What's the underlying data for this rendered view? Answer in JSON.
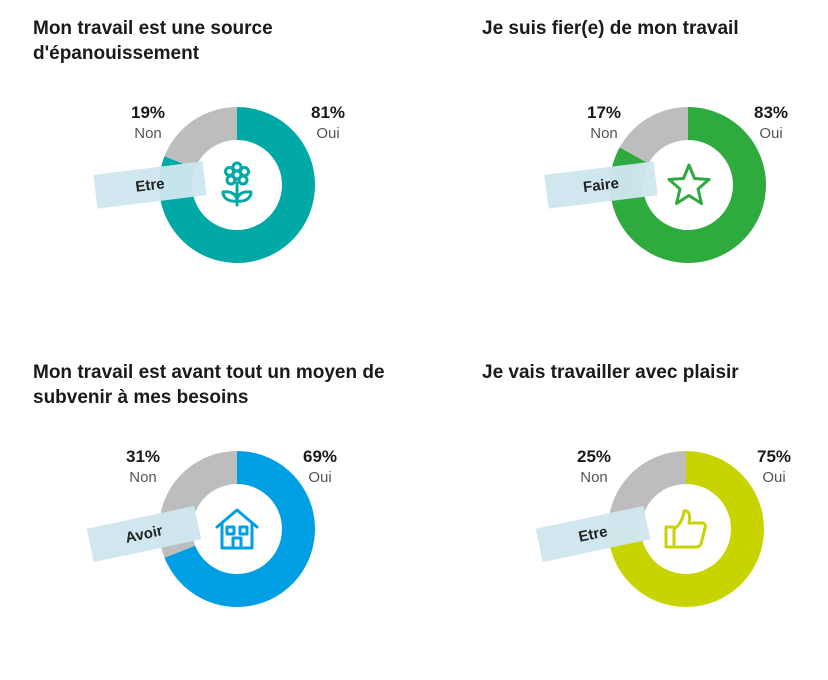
{
  "chart_data": [
    {
      "type": "pie",
      "title": "Mon travail est une source d'épanouissement",
      "categories": [
        "Non",
        "Oui"
      ],
      "values": [
        19,
        81
      ],
      "labels": [
        "19%",
        "81%"
      ],
      "colors": [
        "#bdbdbd",
        "#00a9a5"
      ],
      "tag": "Etre",
      "icon": "flower-icon"
    },
    {
      "type": "pie",
      "title": "Je suis fier(e) de mon travail",
      "categories": [
        "Non",
        "Oui"
      ],
      "values": [
        17,
        83
      ],
      "labels": [
        "17%",
        "83%"
      ],
      "colors": [
        "#bdbdbd",
        "#2eaa3f"
      ],
      "tag": "Faire",
      "icon": "star-icon"
    },
    {
      "type": "pie",
      "title": "Mon travail est avant tout un moyen de subvenir à mes besoins",
      "categories": [
        "Non",
        "Oui"
      ],
      "values": [
        31,
        69
      ],
      "labels": [
        "31%",
        "69%"
      ],
      "colors": [
        "#bdbdbd",
        "#009fe3"
      ],
      "tag": "Avoir",
      "icon": "house-icon"
    },
    {
      "type": "pie",
      "title": "Je vais travailler avec plaisir",
      "categories": [
        "Non",
        "Oui"
      ],
      "values": [
        25,
        75
      ],
      "labels": [
        "25%",
        "75%"
      ],
      "colors": [
        "#bdbdbd",
        "#c8d400"
      ],
      "tag": "Etre",
      "icon": "thumbs-up-icon"
    }
  ]
}
